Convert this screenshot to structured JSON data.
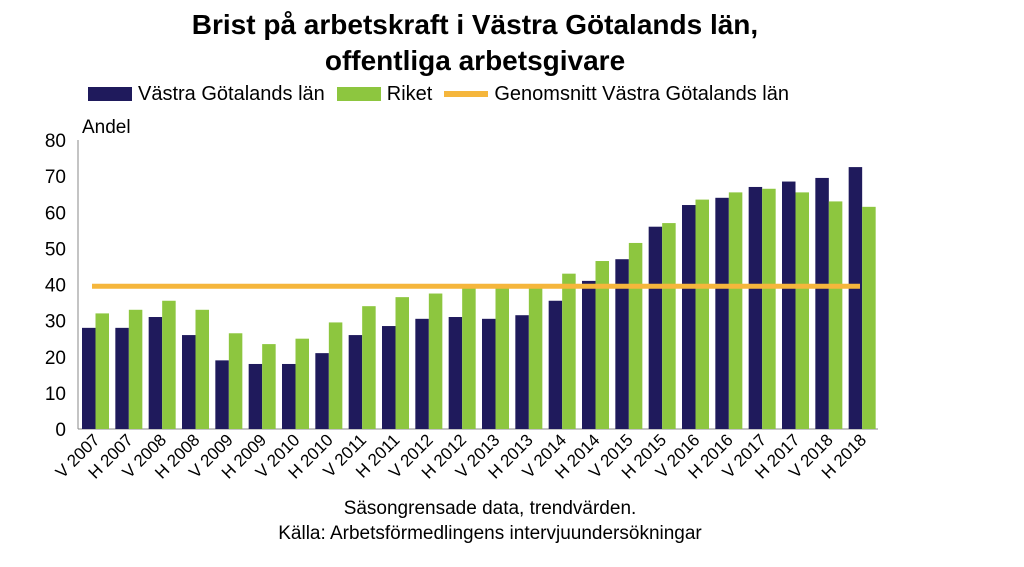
{
  "title_line1": "Brist på arbetskraft i Västra Götalands län,",
  "title_line2": "offentliga arbetsgivare",
  "note_line1": "Säsongrensade data, trendvärden.",
  "note_line2": "Källa: Arbetsförmedlingens intervjuundersökningar",
  "chart_data": {
    "type": "bar",
    "title": "Brist på arbetskraft i Västra Götalands län, offentliga arbetsgivare",
    "ylabel": "Andel",
    "xlabel": "",
    "ylim": [
      0,
      80
    ],
    "yticks": [
      0,
      10,
      20,
      30,
      40,
      50,
      60,
      70,
      80
    ],
    "legend_position": "top",
    "categories": [
      "V 2007",
      "H 2007",
      "V 2008",
      "H 2008",
      "V 2009",
      "H 2009",
      "V 2010",
      "H 2010",
      "V 2011",
      "H 2011",
      "V 2012",
      "H 2012",
      "V 2013",
      "H 2013",
      "V 2014",
      "H 2014",
      "V 2015",
      "H 2015",
      "V 2016",
      "H 2016",
      "V 2017",
      "H 2017",
      "V 2018",
      "H 2018"
    ],
    "series": [
      {
        "name": "Västra Götalands län",
        "color": "#1f1a5c",
        "values": [
          28,
          28,
          31,
          26,
          19,
          18,
          18,
          21,
          26,
          28.5,
          30.5,
          31,
          30.5,
          31.5,
          35.5,
          41,
          47,
          56,
          62,
          64,
          67,
          68.5,
          69.5,
          72.5
        ]
      },
      {
        "name": "Riket",
        "color": "#8dc63f",
        "values": [
          32,
          33,
          35.5,
          33,
          26.5,
          23.5,
          25,
          29.5,
          34,
          36.5,
          37.5,
          39,
          39,
          39.5,
          43,
          46.5,
          51.5,
          57,
          63.5,
          65.5,
          66.5,
          65.5,
          63,
          61.5
        ]
      }
    ],
    "reference_line": {
      "name": "Genomsnitt Västra Götalands  län",
      "value": 39.5,
      "color": "#f5b63c"
    }
  }
}
